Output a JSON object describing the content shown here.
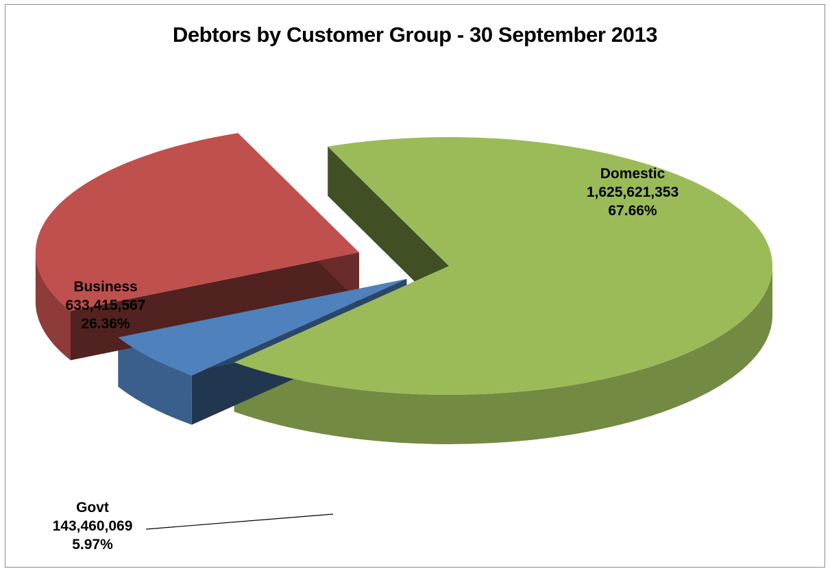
{
  "chart_data": {
    "type": "pie",
    "title": "Debtors by Customer Group - 30 September 2013",
    "style": "3d-exploded",
    "slices": [
      {
        "name": "Domestic",
        "value": 1625621353,
        "value_label": "1,625,621,353",
        "percent_label": "67.66%",
        "color": "#9bbb59"
      },
      {
        "name": "Govt",
        "value": 143460069,
        "value_label": "143,460,069",
        "percent_label": "5.97%",
        "color": "#4f81bd"
      },
      {
        "name": "Business",
        "value": 633415567,
        "value_label": "633,415,567",
        "percent_label": "26.36%",
        "color": "#c0504d"
      }
    ]
  }
}
